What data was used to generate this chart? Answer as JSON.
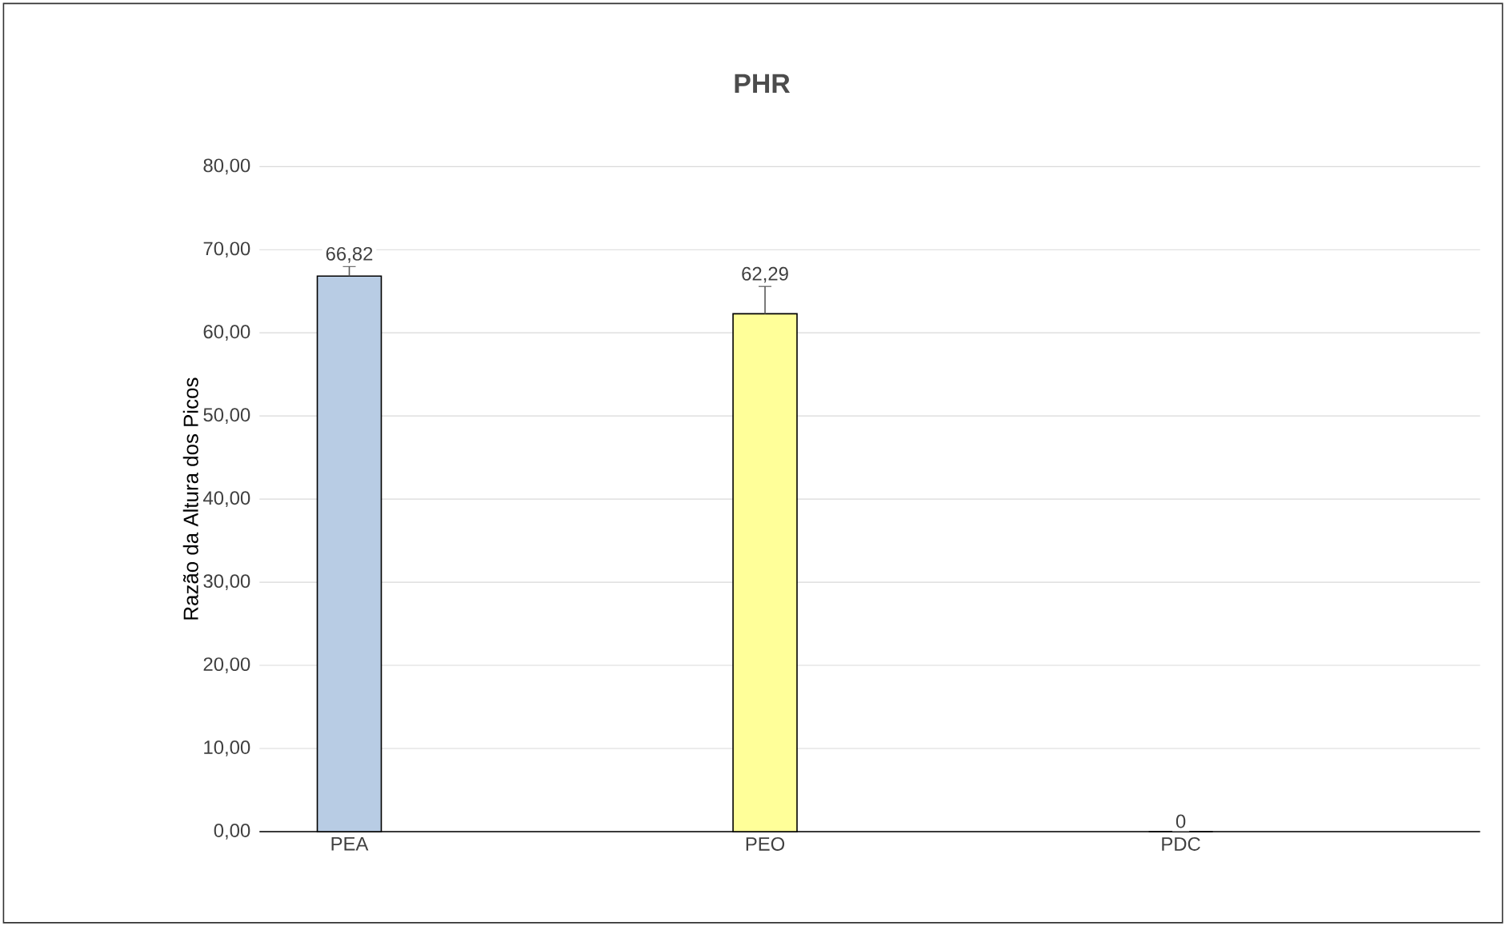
{
  "chart_data": {
    "type": "bar",
    "title": "PHR",
    "ylabel": "Razão da Altura dos Picos",
    "categories": [
      "PEA",
      "PEO",
      "PDC"
    ],
    "values": [
      66.82,
      62.29,
      0
    ],
    "colors": [
      "#b8cce4",
      "#ffff99",
      "#b8cce4"
    ],
    "value_labels": [
      "66,82",
      "62,29",
      "0"
    ],
    "errors": [
      [
        66.82,
        68.0
      ],
      [
        62.29,
        65.6
      ],
      null
    ],
    "ylim": [
      0,
      80
    ],
    "yticks": [
      {
        "value": 0,
        "label": "0,00"
      },
      {
        "value": 10,
        "label": "10,00"
      },
      {
        "value": 20,
        "label": "20,00"
      },
      {
        "value": 30,
        "label": "30,00"
      },
      {
        "value": 40,
        "label": "40,00"
      },
      {
        "value": 50,
        "label": "50,00"
      },
      {
        "value": 60,
        "label": "60,00"
      },
      {
        "value": 70,
        "label": "70,00"
      },
      {
        "value": 80,
        "label": "80,00"
      }
    ],
    "grid": "y"
  }
}
